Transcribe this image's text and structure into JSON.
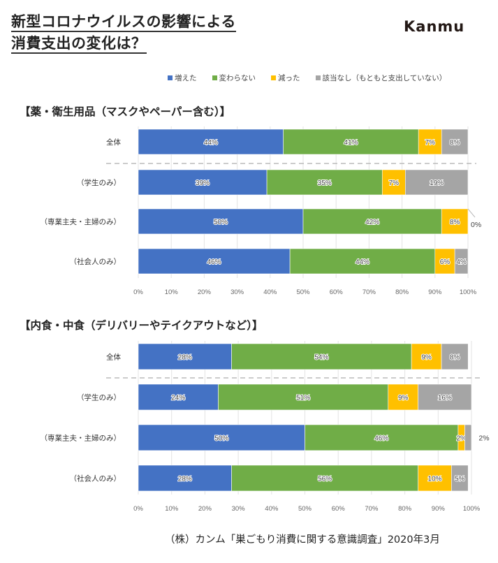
{
  "header": {
    "title_line1": "新型コロナウイルスの影響による",
    "title_line2": "消費支出の変化は？",
    "brand": "Kanmu"
  },
  "legend": [
    {
      "label": "増えた",
      "color": "#4472C4"
    },
    {
      "label": "変わらない",
      "color": "#70AD47"
    },
    {
      "label": "減った",
      "color": "#FFC000"
    },
    {
      "label": "該当なし（もともと支出していない）",
      "color": "#A5A5A5"
    }
  ],
  "source": "（株）カンム「巣ごもり消費に関する意識調査」2020年3月",
  "chart_data": [
    {
      "type": "bar",
      "orientation": "horizontal",
      "stacked": true,
      "title": "【薬・衛生用品（マスクやペーパー含む）】",
      "categories": [
        "全体",
        "（学生のみ）",
        "（専業主夫・主婦のみ）",
        "（社会人のみ）"
      ],
      "series": [
        {
          "name": "増えた",
          "values": [
            44,
            39,
            50,
            46
          ]
        },
        {
          "name": "変わらない",
          "values": [
            41,
            35,
            42,
            44
          ]
        },
        {
          "name": "減った",
          "values": [
            7,
            7,
            8,
            6
          ]
        },
        {
          "name": "該当なし（もともと支出していない）",
          "values": [
            8,
            19,
            0,
            4
          ]
        }
      ],
      "labels": [
        [
          "44%",
          "41%",
          "7%",
          "8%"
        ],
        [
          "39%",
          "35%",
          "7%",
          "19%"
        ],
        [
          "50%",
          "42%",
          "8%",
          "0%"
        ],
        [
          "46%",
          "44%",
          "6%",
          "4%"
        ]
      ],
      "xlim": [
        0,
        100
      ],
      "xticks": [
        "0%",
        "10%",
        "20%",
        "30%",
        "40%",
        "50%",
        "60%",
        "70%",
        "80%",
        "90%",
        "100%"
      ],
      "grid": true,
      "separator_after_first_row": true
    },
    {
      "type": "bar",
      "orientation": "horizontal",
      "stacked": true,
      "title": "【内食・中食（デリバリーやテイクアウトなど）】",
      "categories": [
        "全体",
        "（学生のみ）",
        "（専業主夫・主婦のみ）",
        "（社会人のみ）"
      ],
      "series": [
        {
          "name": "増えた",
          "values": [
            28,
            24,
            50,
            28
          ]
        },
        {
          "name": "変わらない",
          "values": [
            54,
            51,
            46,
            56
          ]
        },
        {
          "name": "減った",
          "values": [
            9,
            9,
            2,
            10
          ]
        },
        {
          "name": "該当なし（もともと支出していない）",
          "values": [
            8,
            16,
            2,
            5
          ]
        }
      ],
      "labels": [
        [
          "28%",
          "54%",
          "9%",
          "8%"
        ],
        [
          "24%",
          "51%",
          "9%",
          "16%"
        ],
        [
          "50%",
          "46%",
          "2%",
          "2%"
        ],
        [
          "28%",
          "56%",
          "10%",
          "5%"
        ]
      ],
      "xlim": [
        0,
        100
      ],
      "xticks": [
        "0%",
        "10%",
        "20%",
        "30%",
        "40%",
        "50%",
        "60%",
        "70%",
        "80%",
        "90%",
        "100%"
      ],
      "grid": true,
      "separator_after_first_row": true
    }
  ]
}
